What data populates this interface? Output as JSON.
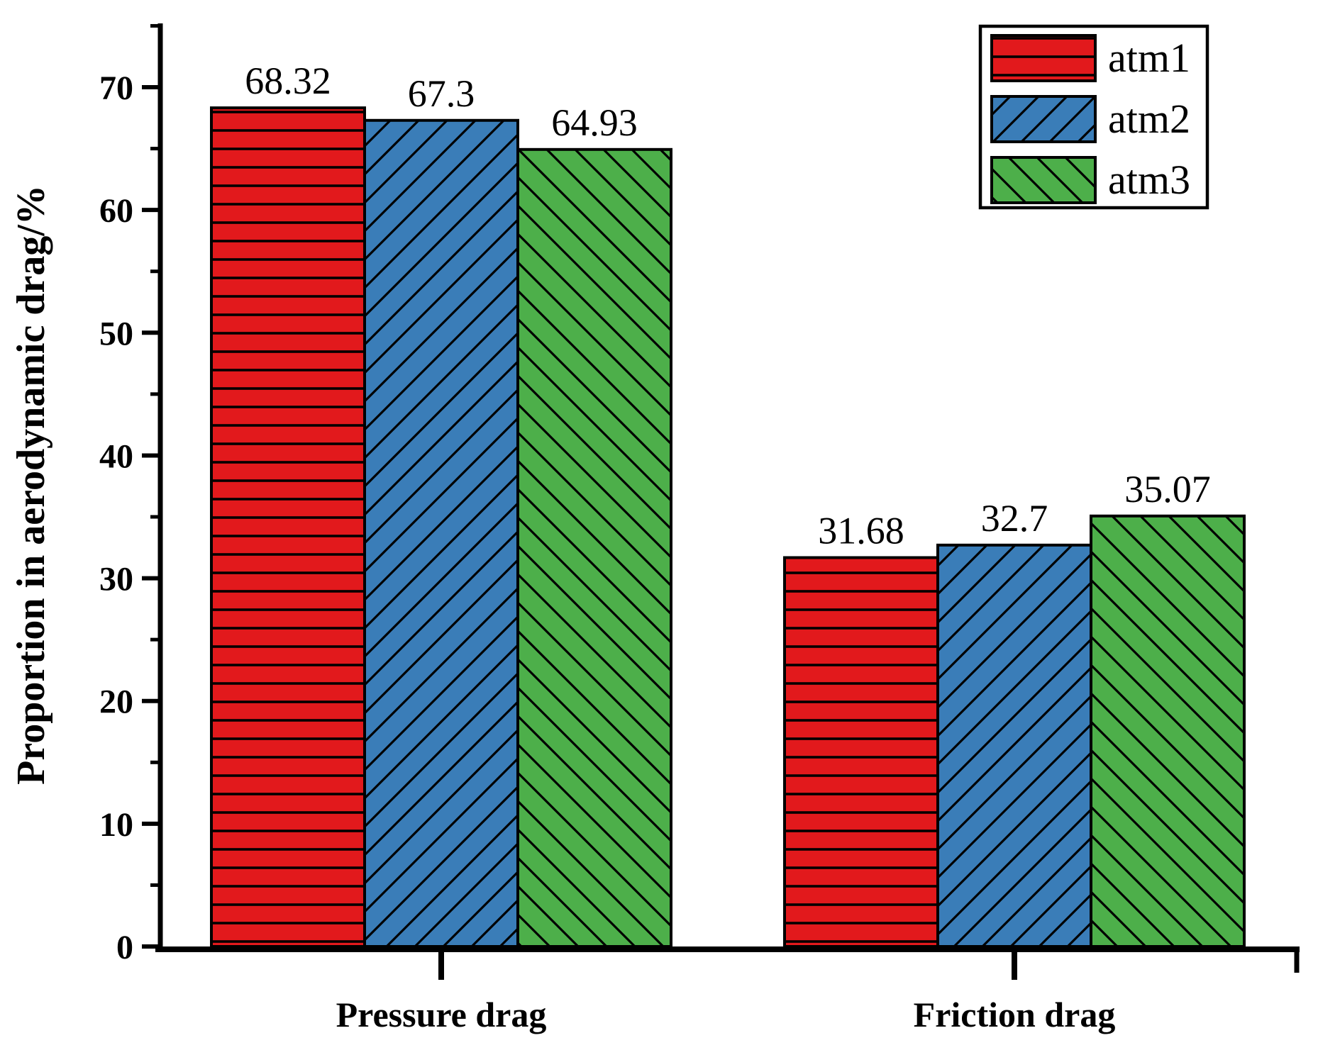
{
  "figure": {
    "background": "#ffffff"
  },
  "chart_data": {
    "type": "bar",
    "title": "",
    "xlabel": "",
    "ylabel": "Proportion in aerodynamic drag/%",
    "categories": [
      "Pressure drag",
      "Friction drag"
    ],
    "series": [
      {
        "name": "atm1",
        "color": "#e2191c",
        "hatch": "horizontal",
        "values": [
          68.32,
          31.68
        ]
      },
      {
        "name": "atm2",
        "color": "#3a7db8",
        "hatch": "diagonal-forward",
        "values": [
          67.3,
          32.7
        ]
      },
      {
        "name": "atm3",
        "color": "#4daf4a",
        "hatch": "diagonal-backward",
        "values": [
          64.93,
          35.07
        ]
      }
    ],
    "value_labels": [
      [
        "68.32",
        "67.3",
        "64.93"
      ],
      [
        "31.68",
        "32.7",
        "35.07"
      ]
    ],
    "ylim": [
      0,
      75
    ],
    "yticks_major": [
      0,
      10,
      20,
      30,
      40,
      50,
      60,
      70
    ],
    "ytick_minor_step": 5,
    "grid": false,
    "legend_position": "top-right",
    "legend_labels": [
      "atm1",
      "atm2",
      "atm3"
    ],
    "axis_color": "#000000",
    "bar_edge_color": "#000000",
    "hatch_color": "#000000"
  }
}
